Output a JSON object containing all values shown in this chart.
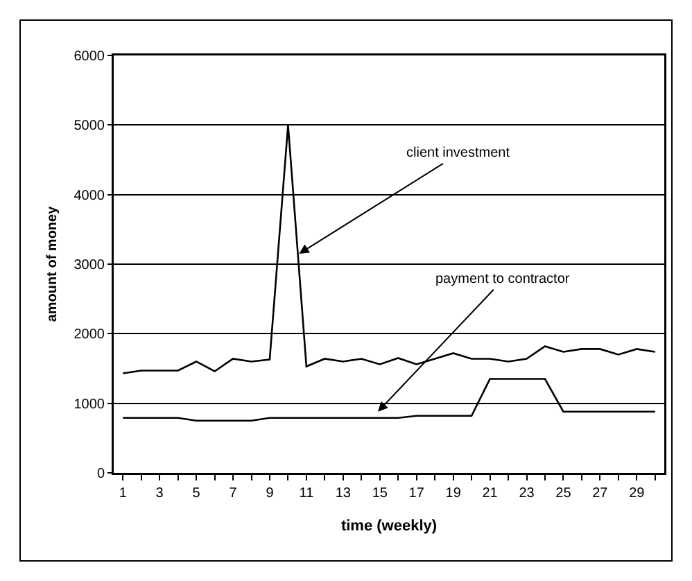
{
  "chart_data": {
    "type": "line",
    "xlabel": "time (weekly)",
    "ylabel": "amount of money",
    "x": [
      1,
      2,
      3,
      4,
      5,
      6,
      7,
      8,
      9,
      10,
      11,
      12,
      13,
      14,
      15,
      16,
      17,
      18,
      19,
      20,
      21,
      22,
      23,
      24,
      25,
      26,
      27,
      28,
      29,
      30
    ],
    "series": [
      {
        "color": "#000000",
        "values": [
          1430,
          1470,
          1470,
          1470,
          1600,
          1460,
          1640,
          1600,
          1630,
          5000,
          1530,
          1640,
          1600,
          1640,
          1560,
          1650,
          1560,
          1640,
          1720,
          1640,
          1640,
          1600,
          1640,
          1820,
          1740,
          1780,
          1780,
          1700,
          1780,
          1740
        ]
      },
      {
        "color": "#000000",
        "values": [
          790,
          790,
          790,
          790,
          750,
          750,
          750,
          750,
          790,
          790,
          790,
          790,
          790,
          790,
          790,
          790,
          820,
          820,
          820,
          820,
          1350,
          1350,
          1350,
          1350,
          880,
          880,
          880,
          880,
          880,
          880
        ]
      }
    ],
    "annotations": [
      {
        "text": "client investment",
        "x": 10.6,
        "y": 3150
      },
      {
        "text": "payment to contractor",
        "x": 14.9,
        "y": 880
      }
    ],
    "xlim": [
      0.5,
      30.5
    ],
    "xticks": [
      1,
      {
        "value": 2,
        "label": null
      },
      3,
      {
        "value": 4,
        "label": null
      },
      5,
      {
        "value": 6,
        "label": null
      },
      7,
      {
        "value": 8,
        "label": null
      },
      9,
      {
        "value": 10,
        "label": null
      },
      11,
      {
        "value": 12,
        "label": null
      },
      13,
      {
        "value": 14,
        "label": null
      },
      15,
      {
        "value": 16,
        "label": null
      },
      17,
      {
        "value": 18,
        "label": null
      },
      19,
      {
        "value": 20,
        "label": null
      },
      21,
      {
        "value": 22,
        "label": null
      },
      23,
      {
        "value": 24,
        "label": null
      },
      25,
      {
        "value": 26,
        "label": null
      },
      27,
      {
        "value": 28,
        "label": null
      },
      29,
      {
        "value": 30,
        "label": null
      }
    ],
    "ylim": [
      0,
      6000
    ],
    "yticks": [
      0,
      1000,
      2000,
      3000,
      4000,
      5000,
      6000
    ],
    "grid": "y",
    "marker": "none",
    "line_style": "solid"
  }
}
